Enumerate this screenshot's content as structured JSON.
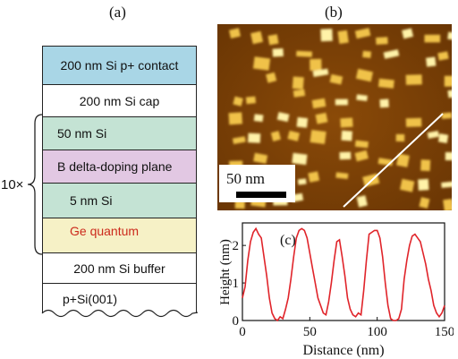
{
  "panel_a": {
    "label": "(a)",
    "repeat_label": "10×",
    "layers": [
      {
        "text": "200 nm Si p+ contact",
        "color": "#a9d6e6"
      },
      {
        "text": "200 nm Si cap",
        "color": "#ffffff"
      },
      {
        "text": "50 nm Si",
        "color": "#c4e3d4"
      },
      {
        "text": "B delta-doping plane",
        "color": "#e2c8e3"
      },
      {
        "text": "5 nm Si",
        "color": "#c4e3d4"
      },
      {
        "text": "Ge quantum",
        "color": "#f6f1c6",
        "text_color": "#cc2a1c"
      },
      {
        "text": "200 nm Si buffer",
        "color": "#ffffff"
      },
      {
        "text": "p+Si(001)",
        "color": "#ffffff"
      }
    ]
  },
  "panel_b": {
    "label": "(b)",
    "scale_bar": "50 nm"
  },
  "chart_data": {
    "type": "line",
    "label": "(c)",
    "xlabel": "Distance (nm)",
    "ylabel": "Height (nm)",
    "xlim": [
      0,
      150
    ],
    "ylim": [
      0,
      2.6
    ],
    "xticks": [
      "0",
      "50",
      "100",
      "150"
    ],
    "yticks": [
      "0",
      "1",
      "2"
    ],
    "color": "#e0242a",
    "series": [
      {
        "x": [
          0,
          2,
          4,
          6,
          8,
          10,
          12,
          14,
          16,
          18,
          20,
          22,
          24,
          26,
          28,
          30,
          32,
          34,
          36,
          38,
          40,
          42,
          44,
          46,
          48,
          50,
          52,
          54,
          56,
          58,
          60,
          62,
          64,
          66,
          68,
          70,
          72,
          74,
          76,
          78,
          80,
          82,
          84,
          86,
          88,
          90,
          92,
          94,
          96,
          98,
          100,
          102,
          104,
          106,
          108,
          110,
          112,
          114,
          116,
          118,
          120,
          122,
          124,
          126,
          128,
          130,
          132,
          134,
          136,
          138,
          140,
          142,
          144,
          146,
          148,
          150
        ],
        "y": [
          0.6,
          0.9,
          1.6,
          2.1,
          2.35,
          2.45,
          2.3,
          2.2,
          1.7,
          1.2,
          0.6,
          0.2,
          0.05,
          0.0,
          0.1,
          0.05,
          0.3,
          0.6,
          1.1,
          1.7,
          2.2,
          2.4,
          2.45,
          2.4,
          2.2,
          1.8,
          1.4,
          1.0,
          0.6,
          0.4,
          0.2,
          0.15,
          0.5,
          1.0,
          1.6,
          2.1,
          2.15,
          1.7,
          1.2,
          0.6,
          0.3,
          0.15,
          0.1,
          0.2,
          0.15,
          0.8,
          1.6,
          2.3,
          2.35,
          2.4,
          2.4,
          2.2,
          1.7,
          1.0,
          0.4,
          0.05,
          0.0,
          0.0,
          0.05,
          0.3,
          1.1,
          1.6,
          2.0,
          2.25,
          2.3,
          2.2,
          2.1,
          1.8,
          1.5,
          1.1,
          0.8,
          0.4,
          0.2,
          0.1,
          0.2,
          0.4
        ]
      }
    ]
  }
}
